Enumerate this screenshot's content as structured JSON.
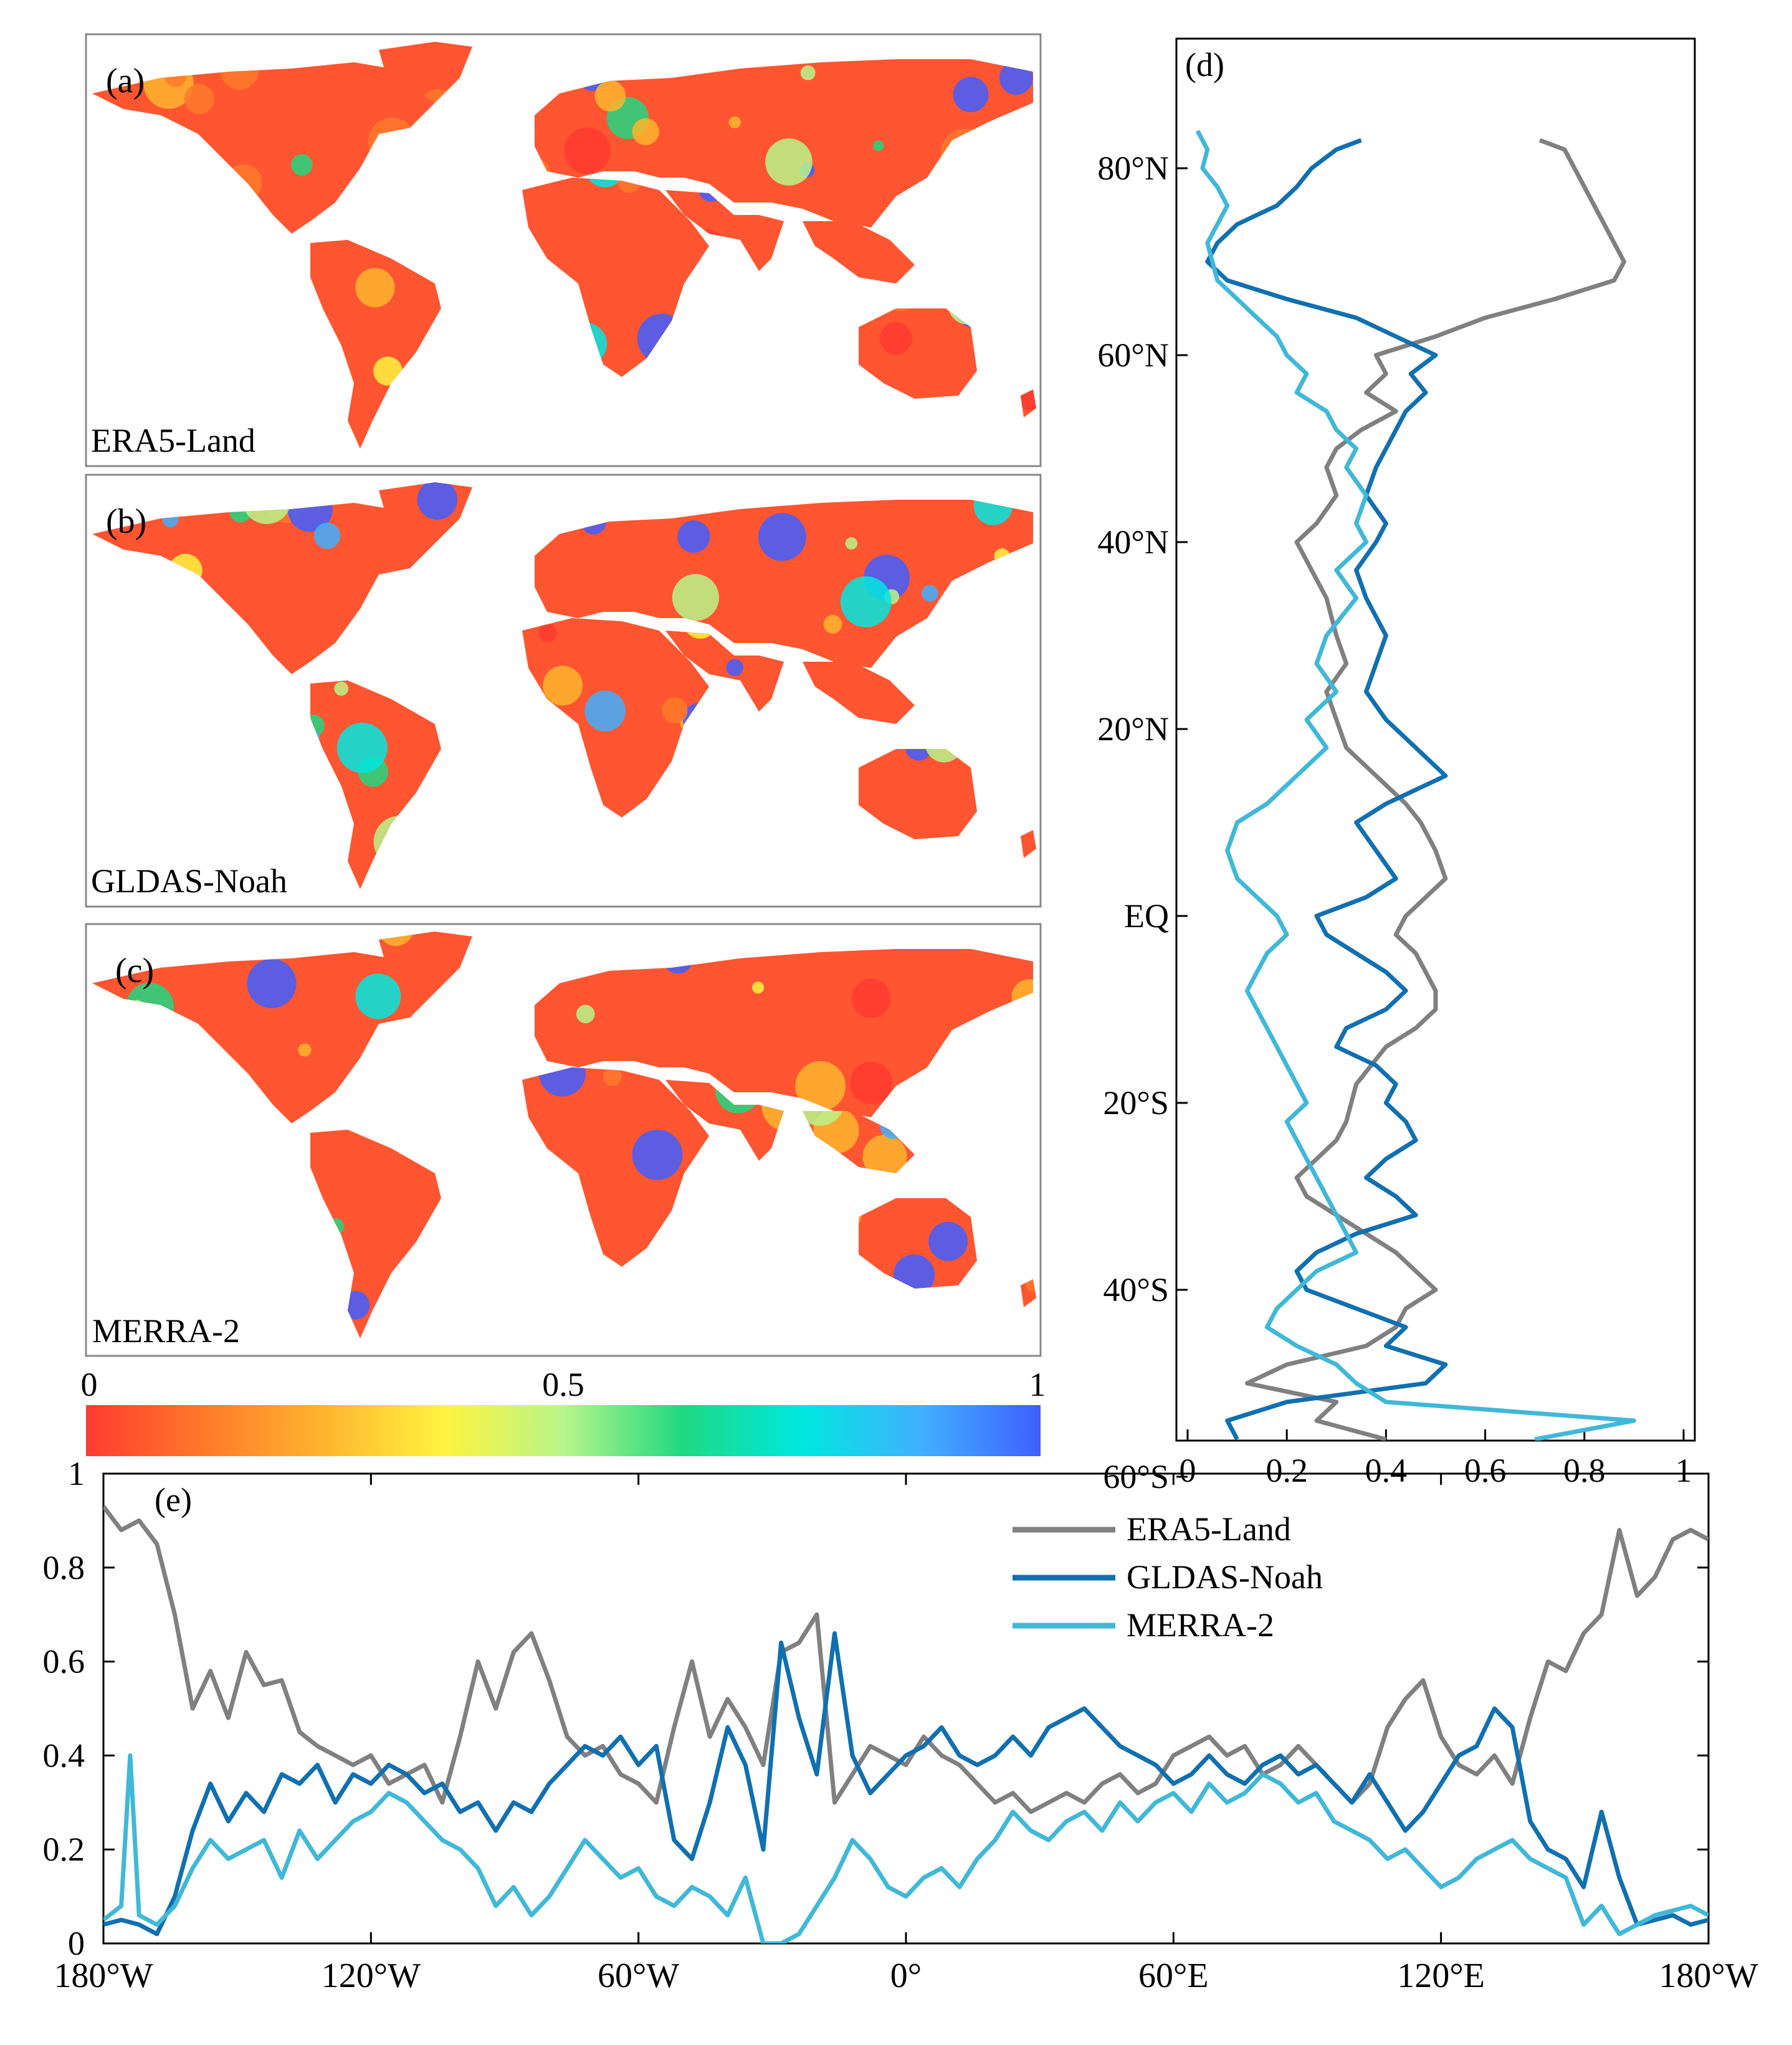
{
  "colors": {
    "era5": "#808080",
    "gldas": "#1070b0",
    "merra": "#40b8d8",
    "map_low": "#ff3b2a",
    "map_high": "#3b4fff"
  },
  "maps": [
    {
      "panel": "(a)",
      "dataset": "ERA5-Land"
    },
    {
      "panel": "(b)",
      "dataset": "GLDAS-Noah"
    },
    {
      "panel": "(c)",
      "dataset": "MERRA-2"
    }
  ],
  "colorbar": {
    "ticks": [
      "0",
      "0.5",
      "1"
    ],
    "stops": [
      "#ff3b30",
      "#ff7a2a",
      "#ffb52e",
      "#fff340",
      "#b8f58a",
      "#20d880",
      "#00e8e0",
      "#40b0ff",
      "#3f5fff"
    ]
  },
  "chart_data": [
    {
      "panel": "(d)",
      "type": "line",
      "orientation": "vertical",
      "xlim": [
        0,
        1
      ],
      "ylim": [
        -60,
        90
      ],
      "xticks": [
        "0",
        "0.2",
        "0.4",
        "0.6",
        "0.8",
        "1"
      ],
      "yticks": [
        {
          "value": 80,
          "label": "80°N"
        },
        {
          "value": 60,
          "label": "60°N"
        },
        {
          "value": 40,
          "label": "40°N"
        },
        {
          "value": 20,
          "label": "20°N"
        },
        {
          "value": 0,
          "label": "EQ"
        },
        {
          "value": -20,
          "label": "20°S"
        },
        {
          "value": -40,
          "label": "40°S"
        },
        {
          "value": -60,
          "label": "60°S"
        }
      ],
      "series": [
        {
          "name": "ERA5-Land",
          "lat": [
            83,
            82,
            80,
            78,
            75,
            72,
            70,
            68,
            66,
            64,
            62,
            60,
            58,
            56,
            54,
            52,
            50,
            48,
            45,
            42,
            40,
            37,
            34,
            30,
            27,
            24,
            21,
            18,
            15,
            12,
            10,
            7,
            4,
            2,
            0,
            -2,
            -4,
            -6,
            -8,
            -10,
            -12,
            -14,
            -16,
            -18,
            -20,
            -22,
            -24,
            -26,
            -28,
            -30,
            -32,
            -34,
            -36,
            -38,
            -40,
            -42,
            -44,
            -46,
            -48,
            -50,
            -52,
            -54,
            -56
          ],
          "values": [
            0.71,
            0.76,
            0.78,
            0.8,
            0.83,
            0.86,
            0.88,
            0.86,
            0.74,
            0.6,
            0.5,
            0.38,
            0.4,
            0.36,
            0.42,
            0.35,
            0.3,
            0.28,
            0.3,
            0.26,
            0.22,
            0.25,
            0.28,
            0.3,
            0.32,
            0.28,
            0.3,
            0.32,
            0.38,
            0.44,
            0.47,
            0.5,
            0.52,
            0.48,
            0.44,
            0.42,
            0.46,
            0.48,
            0.5,
            0.5,
            0.46,
            0.4,
            0.37,
            0.34,
            0.33,
            0.32,
            0.3,
            0.26,
            0.22,
            0.24,
            0.3,
            0.36,
            0.42,
            0.46,
            0.5,
            0.44,
            0.42,
            0.36,
            0.2,
            0.12,
            0.3,
            0.26,
            0.4
          ]
        },
        {
          "name": "GLDAS-Noah",
          "lat": [
            83,
            82,
            80,
            78,
            76,
            74,
            72,
            70,
            68,
            66,
            64,
            62,
            60,
            58,
            56,
            54,
            52,
            50,
            48,
            45,
            42,
            40,
            37,
            34,
            30,
            27,
            24,
            21,
            18,
            15,
            12,
            10,
            7,
            4,
            2,
            0,
            -2,
            -4,
            -6,
            -8,
            -10,
            -12,
            -14,
            -16,
            -18,
            -20,
            -22,
            -24,
            -26,
            -28,
            -30,
            -32,
            -34,
            -36,
            -38,
            -40,
            -42,
            -44,
            -46,
            -48,
            -50,
            -52,
            -54,
            -56
          ],
          "values": [
            0.35,
            0.3,
            0.25,
            0.22,
            0.18,
            0.1,
            0.06,
            0.04,
            0.08,
            0.2,
            0.34,
            0.42,
            0.5,
            0.45,
            0.48,
            0.44,
            0.42,
            0.4,
            0.38,
            0.36,
            0.4,
            0.38,
            0.34,
            0.36,
            0.4,
            0.38,
            0.36,
            0.4,
            0.46,
            0.52,
            0.4,
            0.34,
            0.38,
            0.42,
            0.36,
            0.26,
            0.28,
            0.34,
            0.4,
            0.44,
            0.4,
            0.32,
            0.3,
            0.38,
            0.42,
            0.4,
            0.44,
            0.46,
            0.4,
            0.36,
            0.42,
            0.46,
            0.34,
            0.26,
            0.22,
            0.24,
            0.34,
            0.44,
            0.4,
            0.52,
            0.48,
            0.2,
            0.08,
            0.1
          ]
        },
        {
          "name": "MERRA-2",
          "lat": [
            84,
            82,
            80,
            78,
            76,
            74,
            72,
            70,
            68,
            66,
            64,
            62,
            60,
            58,
            56,
            54,
            52,
            50,
            48,
            45,
            42,
            40,
            37,
            34,
            30,
            27,
            24,
            21,
            18,
            15,
            12,
            10,
            7,
            4,
            2,
            0,
            -2,
            -4,
            -6,
            -8,
            -10,
            -12,
            -14,
            -16,
            -18,
            -20,
            -22,
            -24,
            -26,
            -28,
            -30,
            -32,
            -34,
            -36,
            -38,
            -40,
            -42,
            -44,
            -46,
            -48,
            -50,
            -52,
            -54,
            -56
          ],
          "values": [
            0.02,
            0.04,
            0.03,
            0.06,
            0.08,
            0.06,
            0.04,
            0.05,
            0.06,
            0.1,
            0.14,
            0.18,
            0.2,
            0.24,
            0.22,
            0.28,
            0.3,
            0.34,
            0.32,
            0.36,
            0.34,
            0.36,
            0.3,
            0.34,
            0.28,
            0.26,
            0.3,
            0.24,
            0.28,
            0.22,
            0.16,
            0.1,
            0.08,
            0.1,
            0.14,
            0.18,
            0.2,
            0.16,
            0.14,
            0.12,
            0.14,
            0.16,
            0.18,
            0.2,
            0.22,
            0.24,
            0.2,
            0.22,
            0.24,
            0.26,
            0.28,
            0.3,
            0.32,
            0.34,
            0.26,
            0.22,
            0.18,
            0.16,
            0.22,
            0.3,
            0.34,
            0.4,
            0.9,
            0.7
          ]
        }
      ]
    },
    {
      "panel": "(e)",
      "type": "line",
      "xlim": [
        -180,
        180
      ],
      "ylim": [
        0,
        1
      ],
      "xticks": [
        {
          "value": -180,
          "label": "180°W"
        },
        {
          "value": -120,
          "label": "120°W"
        },
        {
          "value": -60,
          "label": "60°W"
        },
        {
          "value": 0,
          "label": "0°"
        },
        {
          "value": 60,
          "label": "60°E"
        },
        {
          "value": 120,
          "label": "120°E"
        },
        {
          "value": 180,
          "label": "180°W"
        }
      ],
      "yticks": [
        "0",
        "0.2",
        "0.4",
        "0.6",
        "0.8",
        "1"
      ],
      "legend": "top-right",
      "series": [
        {
          "name": "ERA5-Land",
          "lon": [
            -180,
            -176,
            -172,
            -168,
            -164,
            -160,
            -156,
            -152,
            -148,
            -144,
            -140,
            -136,
            -132,
            -128,
            -124,
            -120,
            -116,
            -112,
            -108,
            -104,
            -100,
            -96,
            -92,
            -88,
            -84,
            -80,
            -76,
            -72,
            -68,
            -64,
            -60,
            -56,
            -52,
            -48,
            -44,
            -40,
            -36,
            -32,
            -28,
            -24,
            -20,
            -16,
            -12,
            -8,
            -4,
            0,
            4,
            8,
            12,
            16,
            20,
            24,
            28,
            32,
            36,
            40,
            44,
            48,
            52,
            56,
            60,
            64,
            68,
            72,
            76,
            80,
            84,
            88,
            92,
            96,
            100,
            104,
            108,
            112,
            116,
            120,
            124,
            128,
            132,
            136,
            140,
            144,
            148,
            152,
            156,
            160,
            164,
            168,
            172,
            176,
            180
          ],
          "values": [
            0.93,
            0.88,
            0.9,
            0.85,
            0.7,
            0.5,
            0.58,
            0.48,
            0.62,
            0.55,
            0.56,
            0.45,
            0.42,
            0.4,
            0.38,
            0.4,
            0.34,
            0.36,
            0.38,
            0.3,
            0.44,
            0.6,
            0.5,
            0.62,
            0.66,
            0.56,
            0.44,
            0.4,
            0.42,
            0.36,
            0.34,
            0.3,
            0.46,
            0.6,
            0.44,
            0.52,
            0.46,
            0.38,
            0.62,
            0.64,
            0.7,
            0.3,
            0.36,
            0.42,
            0.4,
            0.38,
            0.44,
            0.4,
            0.38,
            0.34,
            0.3,
            0.32,
            0.28,
            0.3,
            0.32,
            0.3,
            0.34,
            0.36,
            0.32,
            0.34,
            0.4,
            0.42,
            0.44,
            0.4,
            0.42,
            0.36,
            0.38,
            0.42,
            0.38,
            0.34,
            0.3,
            0.34,
            0.46,
            0.52,
            0.56,
            0.44,
            0.38,
            0.36,
            0.4,
            0.34,
            0.48,
            0.6,
            0.58,
            0.66,
            0.7,
            0.88,
            0.74,
            0.78,
            0.86,
            0.88,
            0.86
          ]
        },
        {
          "name": "GLDAS-Noah",
          "lon": [
            -180,
            -176,
            -172,
            -168,
            -164,
            -160,
            -156,
            -152,
            -148,
            -144,
            -140,
            -136,
            -132,
            -128,
            -124,
            -120,
            -116,
            -112,
            -108,
            -104,
            -100,
            -96,
            -92,
            -88,
            -84,
            -80,
            -76,
            -72,
            -68,
            -64,
            -60,
            -56,
            -52,
            -48,
            -44,
            -40,
            -36,
            -32,
            -28,
            -24,
            -20,
            -16,
            -12,
            -8,
            -4,
            0,
            4,
            8,
            12,
            16,
            20,
            24,
            28,
            32,
            36,
            40,
            44,
            48,
            52,
            56,
            60,
            64,
            68,
            72,
            76,
            80,
            84,
            88,
            92,
            96,
            100,
            104,
            108,
            112,
            116,
            120,
            124,
            128,
            132,
            136,
            140,
            144,
            148,
            152,
            156,
            160,
            164,
            168,
            172,
            176,
            180
          ],
          "values": [
            0.04,
            0.05,
            0.04,
            0.02,
            0.1,
            0.24,
            0.34,
            0.26,
            0.32,
            0.28,
            0.36,
            0.34,
            0.38,
            0.3,
            0.36,
            0.34,
            0.38,
            0.36,
            0.32,
            0.34,
            0.28,
            0.3,
            0.24,
            0.3,
            0.28,
            0.34,
            0.38,
            0.42,
            0.4,
            0.44,
            0.38,
            0.42,
            0.22,
            0.18,
            0.3,
            0.46,
            0.38,
            0.2,
            0.64,
            0.48,
            0.36,
            0.66,
            0.4,
            0.32,
            0.36,
            0.4,
            0.42,
            0.46,
            0.4,
            0.38,
            0.4,
            0.44,
            0.4,
            0.46,
            0.48,
            0.5,
            0.46,
            0.42,
            0.4,
            0.38,
            0.34,
            0.36,
            0.4,
            0.36,
            0.34,
            0.38,
            0.4,
            0.36,
            0.38,
            0.34,
            0.3,
            0.36,
            0.3,
            0.24,
            0.28,
            0.34,
            0.4,
            0.42,
            0.5,
            0.46,
            0.26,
            0.2,
            0.18,
            0.12,
            0.28,
            0.14,
            0.04,
            0.05,
            0.06,
            0.04,
            0.05
          ]
        },
        {
          "name": "MERRA-2",
          "lon": [
            -180,
            -176,
            -174,
            -172,
            -168,
            -164,
            -160,
            -156,
            -152,
            -148,
            -144,
            -140,
            -136,
            -132,
            -128,
            -124,
            -120,
            -116,
            -112,
            -108,
            -104,
            -100,
            -96,
            -92,
            -88,
            -84,
            -80,
            -76,
            -72,
            -68,
            -64,
            -60,
            -56,
            -52,
            -48,
            -44,
            -40,
            -36,
            -32,
            -28,
            -24,
            -20,
            -16,
            -12,
            -8,
            -4,
            0,
            4,
            8,
            12,
            16,
            20,
            24,
            28,
            32,
            36,
            40,
            44,
            48,
            52,
            56,
            60,
            64,
            68,
            72,
            76,
            80,
            84,
            88,
            92,
            96,
            100,
            104,
            108,
            112,
            116,
            120,
            124,
            128,
            132,
            136,
            140,
            144,
            148,
            152,
            156,
            160,
            164,
            168,
            172,
            176,
            180
          ],
          "values": [
            0.05,
            0.08,
            0.4,
            0.06,
            0.04,
            0.08,
            0.16,
            0.22,
            0.18,
            0.2,
            0.22,
            0.14,
            0.24,
            0.18,
            0.22,
            0.26,
            0.28,
            0.32,
            0.3,
            0.26,
            0.22,
            0.2,
            0.16,
            0.08,
            0.12,
            0.06,
            0.1,
            0.16,
            0.22,
            0.18,
            0.14,
            0.16,
            0.1,
            0.08,
            0.12,
            0.1,
            0.06,
            0.14,
            0.0,
            0.0,
            0.02,
            0.08,
            0.14,
            0.22,
            0.18,
            0.12,
            0.1,
            0.14,
            0.16,
            0.12,
            0.18,
            0.22,
            0.28,
            0.24,
            0.22,
            0.26,
            0.28,
            0.24,
            0.3,
            0.26,
            0.3,
            0.32,
            0.28,
            0.34,
            0.3,
            0.32,
            0.36,
            0.34,
            0.3,
            0.32,
            0.26,
            0.24,
            0.22,
            0.18,
            0.2,
            0.16,
            0.12,
            0.14,
            0.18,
            0.2,
            0.22,
            0.18,
            0.16,
            0.14,
            0.04,
            0.08,
            0.02,
            0.04,
            0.06,
            0.07,
            0.08,
            0.06
          ]
        }
      ]
    }
  ]
}
